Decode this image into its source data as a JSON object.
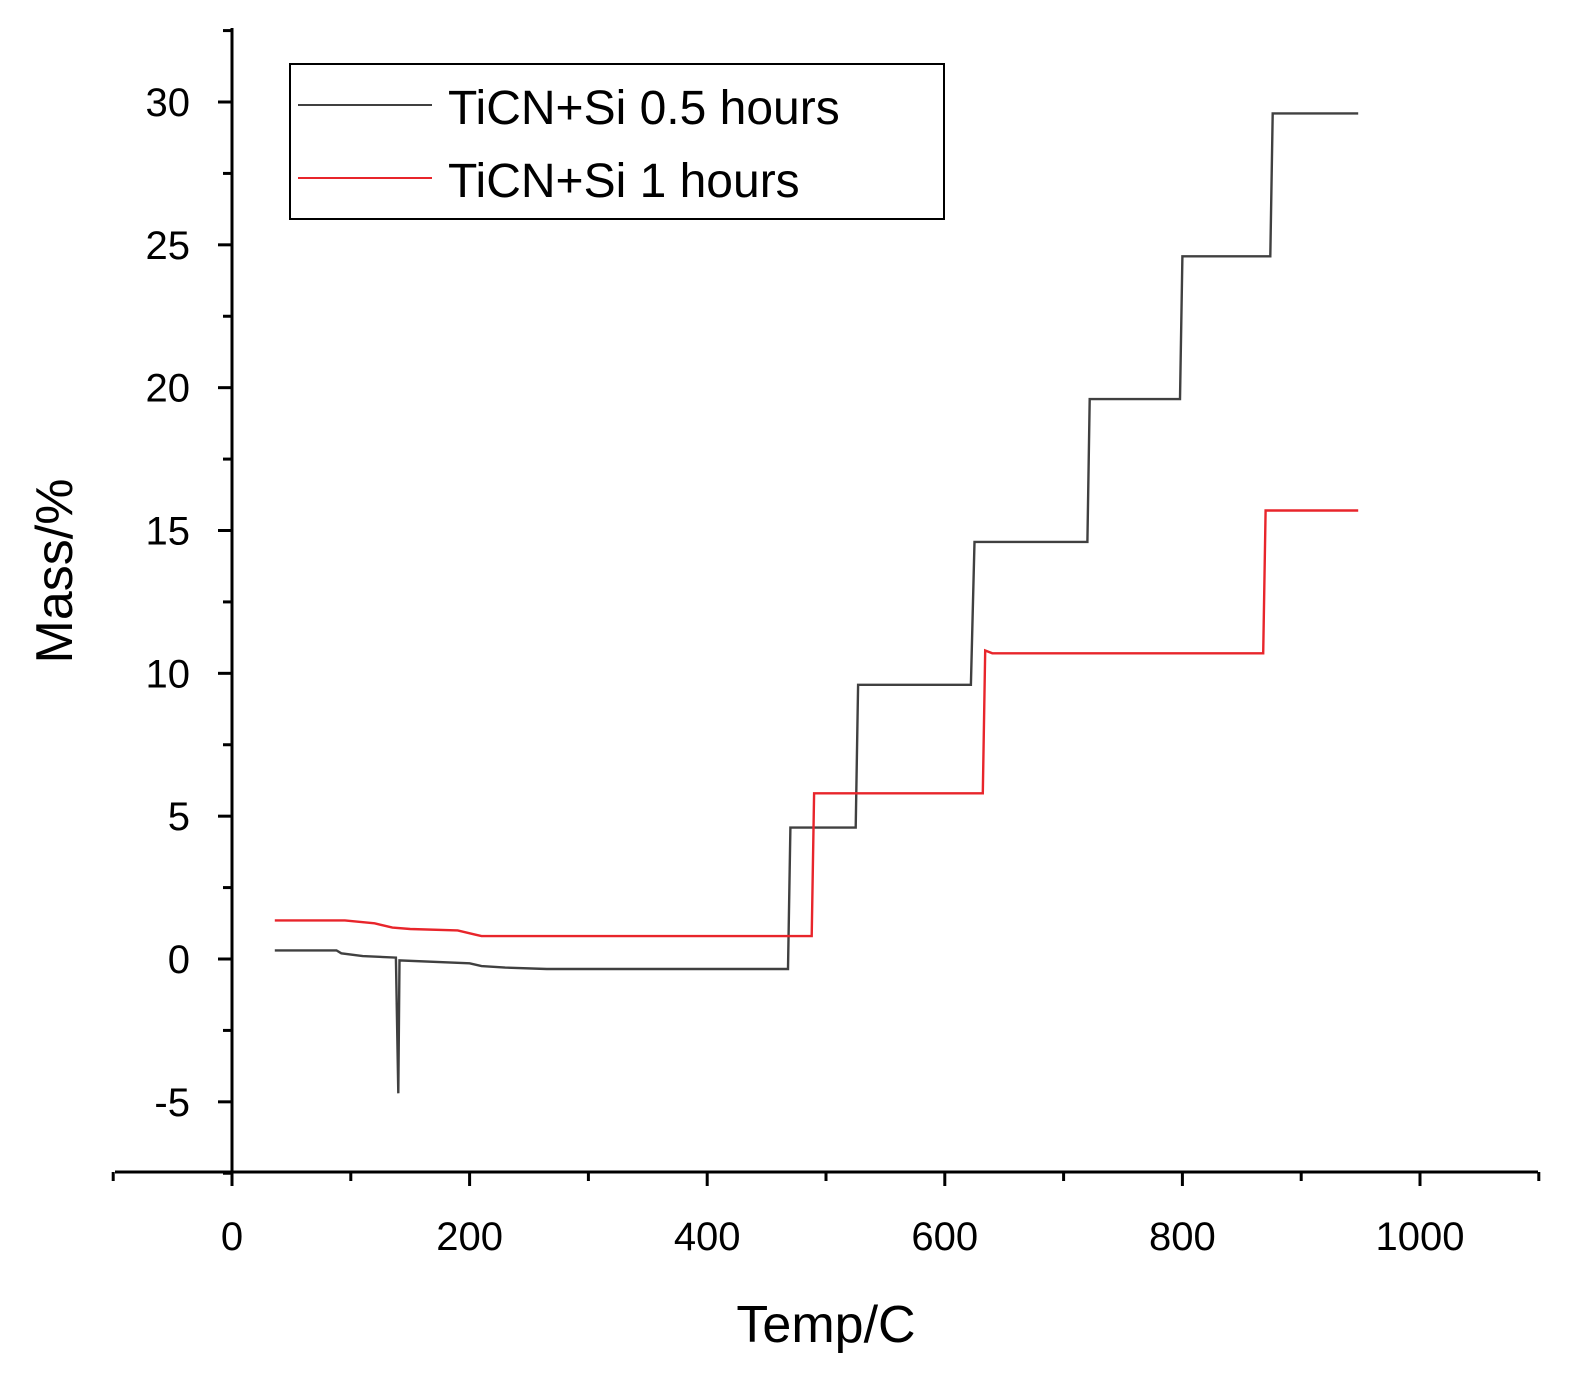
{
  "chart_data": {
    "type": "line",
    "title": "",
    "xlabel": "Temp/C",
    "ylabel": "Mass/%",
    "xlim": [
      -100,
      1100
    ],
    "ylim": [
      -7.5,
      32.5
    ],
    "xticks": [
      0,
      200,
      400,
      600,
      800,
      1000
    ],
    "xtick_labels": [
      "0",
      "200",
      "400",
      "600",
      "800",
      "1000"
    ],
    "yticks": [
      -5,
      0,
      5,
      10,
      15,
      20,
      25,
      30
    ],
    "ytick_labels": [
      "-5",
      "0",
      "5",
      "10",
      "15",
      "20",
      "25",
      "30"
    ],
    "grid": false,
    "legend_position": "top-left",
    "series": [
      {
        "name": "TiCN+Si 0.5 hours",
        "color": "#404040",
        "points": [
          [
            36,
            0.3
          ],
          [
            88,
            0.3
          ],
          [
            92,
            0.2
          ],
          [
            110,
            0.1
          ],
          [
            138,
            0.05
          ],
          [
            140,
            -4.7
          ],
          [
            141,
            -0.05
          ],
          [
            200,
            -0.15
          ],
          [
            210,
            -0.25
          ],
          [
            230,
            -0.3
          ],
          [
            265,
            -0.35
          ],
          [
            468,
            -0.35
          ],
          [
            470,
            4.6
          ],
          [
            525,
            4.6
          ],
          [
            527,
            9.6
          ],
          [
            622,
            9.6
          ],
          [
            625,
            14.6
          ],
          [
            720,
            14.6
          ],
          [
            722,
            19.6
          ],
          [
            798,
            19.6
          ],
          [
            800,
            24.6
          ],
          [
            874,
            24.6
          ],
          [
            876,
            29.6
          ],
          [
            948,
            29.6
          ]
        ]
      },
      {
        "name": "TiCN+Si 1 hours",
        "color": "#e8252b",
        "points": [
          [
            36,
            1.35
          ],
          [
            95,
            1.35
          ],
          [
            120,
            1.25
          ],
          [
            135,
            1.1
          ],
          [
            150,
            1.05
          ],
          [
            190,
            1.0
          ],
          [
            205,
            0.85
          ],
          [
            210,
            0.8
          ],
          [
            488,
            0.8
          ],
          [
            490,
            5.8
          ],
          [
            632,
            5.8
          ],
          [
            634,
            10.8
          ],
          [
            640,
            10.7
          ],
          [
            868,
            10.7
          ],
          [
            870,
            15.7
          ],
          [
            948,
            15.7
          ]
        ]
      }
    ]
  }
}
